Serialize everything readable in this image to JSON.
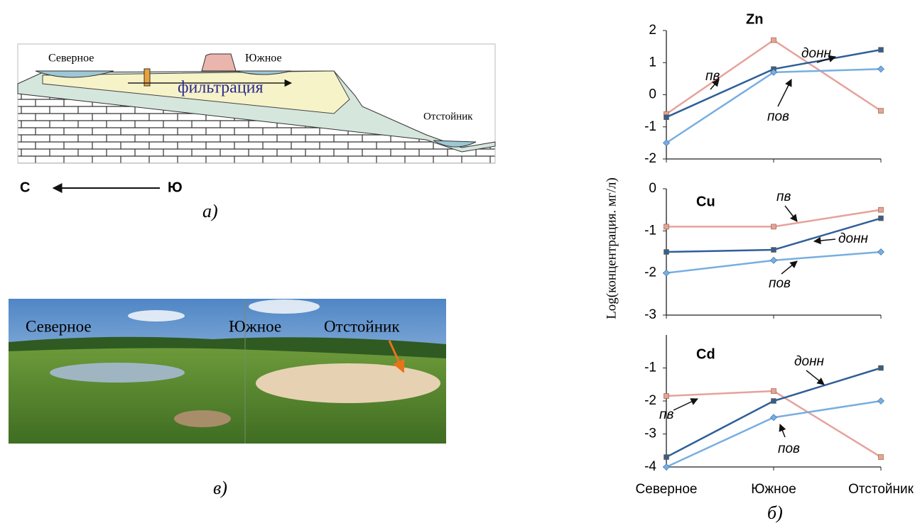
{
  "diagram": {
    "labels": [
      "Северное",
      "Южное",
      "фильтрация",
      "Отстойник"
    ],
    "direction": {
      "left": "С",
      "right": "Ю"
    },
    "caption": "а)"
  },
  "photo": {
    "labels": [
      "Северное",
      "Южное",
      "Отстойник"
    ],
    "caption": "в)"
  },
  "chart_panel": {
    "ylabel": "Log(концентрация. мг/л)",
    "caption": "б)"
  },
  "chart_data": [
    {
      "type": "line",
      "title": "Zn",
      "ylim": [
        -2,
        2
      ],
      "yticks": [
        2,
        1,
        0,
        -1,
        -2
      ],
      "series": [
        {
          "name": "пв",
          "color": "#e6a29c",
          "marker": "square",
          "values": [
            -0.6,
            1.7,
            -0.5
          ]
        },
        {
          "name": "донн",
          "color": "#2f5f98",
          "marker": "square",
          "values": [
            -0.7,
            0.8,
            1.4
          ]
        },
        {
          "name": "пов",
          "color": "#78aee0",
          "marker": "diamond",
          "values": [
            -1.5,
            0.7,
            0.8
          ]
        }
      ],
      "annotations": [
        "пв",
        "донн",
        "пов"
      ]
    },
    {
      "type": "line",
      "title": "Cu",
      "ylim": [
        -3,
        0
      ],
      "yticks": [
        0,
        -1,
        -2,
        -3
      ],
      "series": [
        {
          "name": "пв",
          "color": "#e6a29c",
          "marker": "square",
          "values": [
            -0.9,
            -0.9,
            -0.5
          ]
        },
        {
          "name": "донн",
          "color": "#2f5f98",
          "marker": "square",
          "values": [
            -1.5,
            -1.45,
            -0.7
          ]
        },
        {
          "name": "пов",
          "color": "#78aee0",
          "marker": "diamond",
          "values": [
            -2.0,
            -1.7,
            -1.5
          ]
        }
      ],
      "annotations": [
        "пв",
        "донн",
        "пов"
      ]
    },
    {
      "type": "line",
      "title": "Cd",
      "ylim": [
        -4,
        0
      ],
      "yticks": [
        -1,
        -2,
        -3,
        -4
      ],
      "categories": [
        "Северное",
        "Южное",
        "Отстойник"
      ],
      "series": [
        {
          "name": "пв",
          "color": "#e6a29c",
          "marker": "square",
          "values": [
            -1.85,
            -1.7,
            -3.7
          ]
        },
        {
          "name": "донн",
          "color": "#2f5f98",
          "marker": "square",
          "values": [
            -3.7,
            -2.0,
            -1.0
          ]
        },
        {
          "name": "пов",
          "color": "#78aee0",
          "marker": "diamond",
          "values": [
            -4.0,
            -2.5,
            -2.0
          ]
        }
      ],
      "annotations": [
        "донн",
        "пв",
        "пов"
      ]
    }
  ]
}
